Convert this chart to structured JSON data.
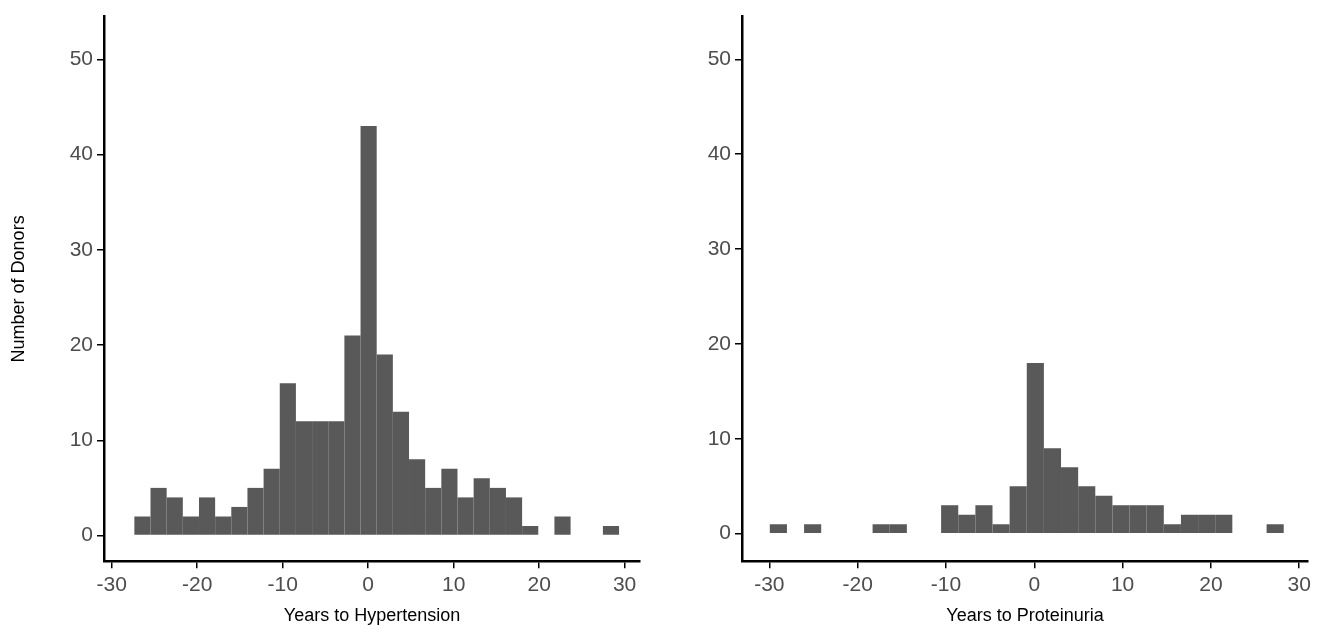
{
  "chart_data": [
    {
      "type": "histogram",
      "xlabel": "Years to Hypertension",
      "ylabel": "Number of Donors",
      "color": "#595959",
      "bins": [
        -27.35,
        -25.46,
        -23.57,
        -21.68,
        -19.79,
        -17.9,
        -16.01,
        -14.12,
        -12.23,
        -10.34,
        -8.45,
        -6.56,
        -4.67,
        -2.78,
        -0.89,
        1.0,
        2.89,
        4.78,
        6.67,
        8.56,
        10.45,
        12.34,
        14.23,
        16.12,
        18.01,
        19.9,
        21.79,
        23.68,
        25.57,
        27.46,
        29.35
      ],
      "values": [
        2,
        5,
        4,
        2,
        4,
        2,
        3,
        5,
        7,
        16,
        12,
        12,
        12,
        21,
        43,
        19,
        13,
        8,
        5,
        7,
        4,
        6,
        5,
        4,
        1,
        0,
        2,
        0,
        0,
        1
      ],
      "xlim": [
        -30.9,
        31.8
      ],
      "xticks": [
        -30,
        -20,
        -10,
        0,
        10,
        20,
        30
      ],
      "ylim": [
        -2.7,
        54.5
      ],
      "yticks": [
        0,
        10,
        20,
        30,
        40,
        50
      ],
      "grid": false
    },
    {
      "type": "histogram",
      "xlabel": "Years to Proteinuria",
      "color": "#595959",
      "bins": [
        -29.95,
        -28.01,
        -26.07,
        -24.13,
        -22.19,
        -20.25,
        -18.31,
        -16.37,
        -14.43,
        -12.49,
        -10.55,
        -8.61,
        -6.67,
        -4.73,
        -2.79,
        -0.85,
        1.09,
        3.03,
        4.97,
        6.91,
        8.85,
        10.79,
        12.73,
        14.67,
        16.61,
        18.55,
        20.49,
        22.43,
        24.37,
        26.31,
        28.25
      ],
      "values": [
        1,
        0,
        1,
        0,
        0,
        0,
        1,
        1,
        0,
        0,
        3,
        2,
        3,
        1,
        5,
        18,
        9,
        7,
        5,
        4,
        3,
        3,
        3,
        1,
        2,
        2,
        2,
        0,
        0,
        1
      ],
      "xlim": [
        -33.1,
        31.0
      ],
      "xticks": [
        -30,
        -20,
        -10,
        0,
        10,
        20,
        30
      ],
      "ylim": [
        -2.9,
        54.5
      ],
      "yticks": [
        0,
        10,
        20,
        30,
        40,
        50
      ],
      "grid": false
    }
  ]
}
